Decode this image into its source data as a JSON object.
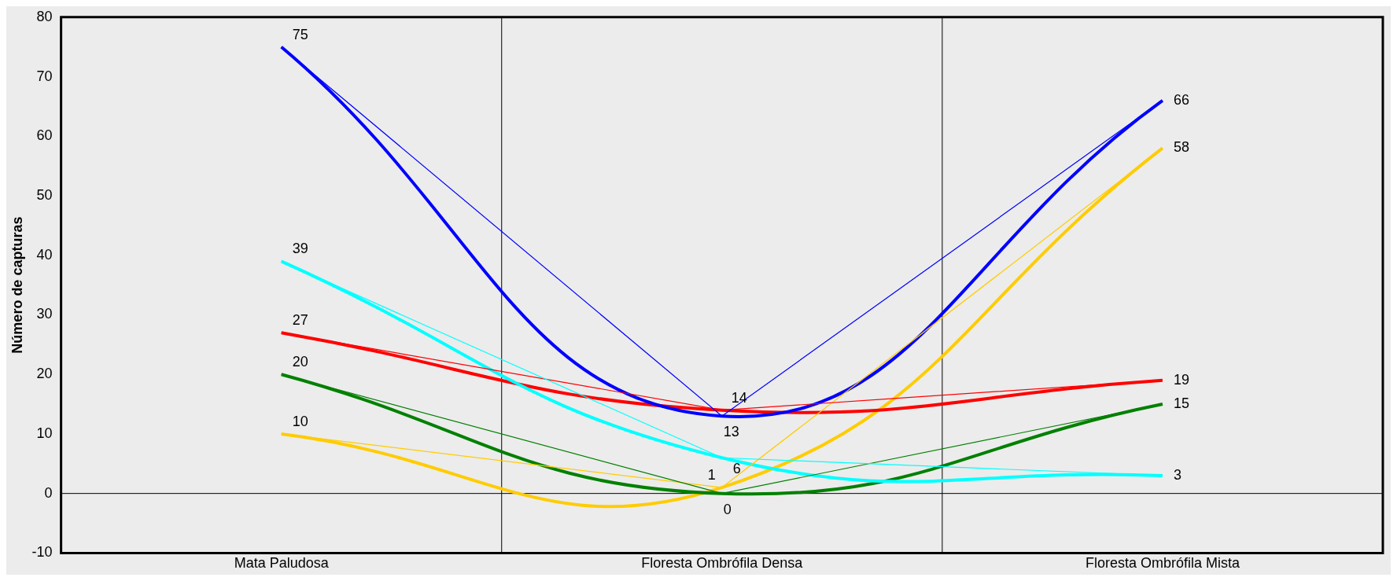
{
  "chart_data": {
    "type": "line",
    "ylabel": "Número de capturas",
    "categories": [
      "Mata Paludosa",
      "Floresta Ombrófila Densa",
      "Floresta Ombrófila Mista"
    ],
    "ylim": [
      -10,
      80
    ],
    "yticks": [
      -10,
      0,
      10,
      20,
      30,
      40,
      50,
      60,
      70,
      80
    ],
    "grid": false,
    "ref_lines": [
      {
        "axis": "y",
        "value": 0,
        "color": "#000000"
      }
    ],
    "legend": false,
    "marker": "none",
    "line_style": "solid",
    "series": [
      {
        "color": "#0000ff",
        "values": [
          75,
          13,
          66
        ],
        "value_labels": [
          "75",
          "13",
          "66"
        ]
      },
      {
        "color": "#00ffff",
        "values": [
          39,
          6,
          3
        ],
        "value_labels": [
          "39",
          "6",
          "3"
        ]
      },
      {
        "color": "#ff0000",
        "values": [
          27,
          14,
          19
        ],
        "value_labels": [
          "27",
          "14",
          "19"
        ]
      },
      {
        "color": "#008000",
        "values": [
          20,
          0,
          15
        ],
        "value_labels": [
          "20",
          "0",
          "15"
        ]
      },
      {
        "color": "#ffcc00",
        "values": [
          10,
          1,
          58
        ],
        "value_labels": [
          "10",
          "1",
          "58"
        ]
      },
      {
        "type": "line",
        "color": "#0000ff",
        "values": [
          75,
          13,
          66
        ]
      },
      {
        "type": "line",
        "color": "#00ffff",
        "values": [
          39,
          6,
          3
        ]
      },
      {
        "type": "line",
        "color": "#ff0000",
        "values": [
          27,
          14,
          19
        ]
      },
      {
        "type": "line",
        "color": "#008000",
        "values": [
          20,
          0,
          15
        ]
      },
      {
        "type": "line",
        "color": "#ffcc00",
        "values": [
          10,
          1,
          58
        ]
      }
    ]
  }
}
